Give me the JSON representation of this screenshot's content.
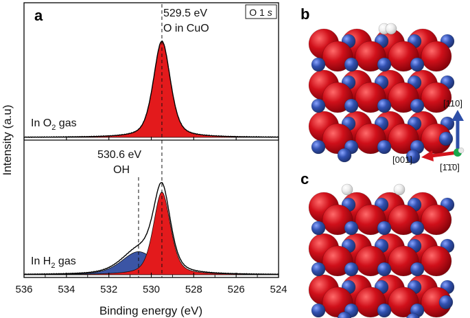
{
  "panel_letters": {
    "a": "a",
    "b": "b",
    "c": "c"
  },
  "legend_box": {
    "text": "O 1 s"
  },
  "colors": {
    "o_cuo": "#e31a1c",
    "oh": "#3b55a5",
    "envelope": "#000000",
    "atom_o": "#e0141a",
    "atom_cu": "#2e4fa8",
    "atom_h": "#f2f2f2"
  },
  "chart_data": {
    "type": "line",
    "xlabel": "Binding energy (eV)",
    "ylabel": "Intensity (a.u)",
    "x_ticks": [
      536,
      534,
      532,
      530,
      528,
      526,
      524
    ],
    "xlim": [
      536,
      524
    ],
    "x_reversed": true,
    "grid": false,
    "panels": [
      {
        "label": "In O2 gas",
        "series": [
          {
            "component": "O in CuO",
            "center": 529.5,
            "fwhm": 0.95,
            "peak_height": 1.0,
            "fill": "red"
          }
        ]
      },
      {
        "label": "In H2 gas",
        "series": [
          {
            "component": "O in CuO",
            "center": 529.5,
            "fwhm": 0.95,
            "peak_height": 0.86,
            "fill": "red"
          },
          {
            "component": "OH",
            "center": 530.6,
            "fwhm": 1.9,
            "peak_height": 0.24,
            "fill": "blue"
          }
        ]
      }
    ],
    "annotations": [
      {
        "energy": 529.5,
        "line1": "529.5 eV",
        "line2": "O in CuO"
      },
      {
        "energy": 530.6,
        "line1": "530.6 eV",
        "line2": "OH"
      }
    ]
  },
  "axes_labels": {
    "arrow_up": "[110]",
    "arrow_left": "[001]",
    "arrow_into": "[1̄1̄0]"
  }
}
